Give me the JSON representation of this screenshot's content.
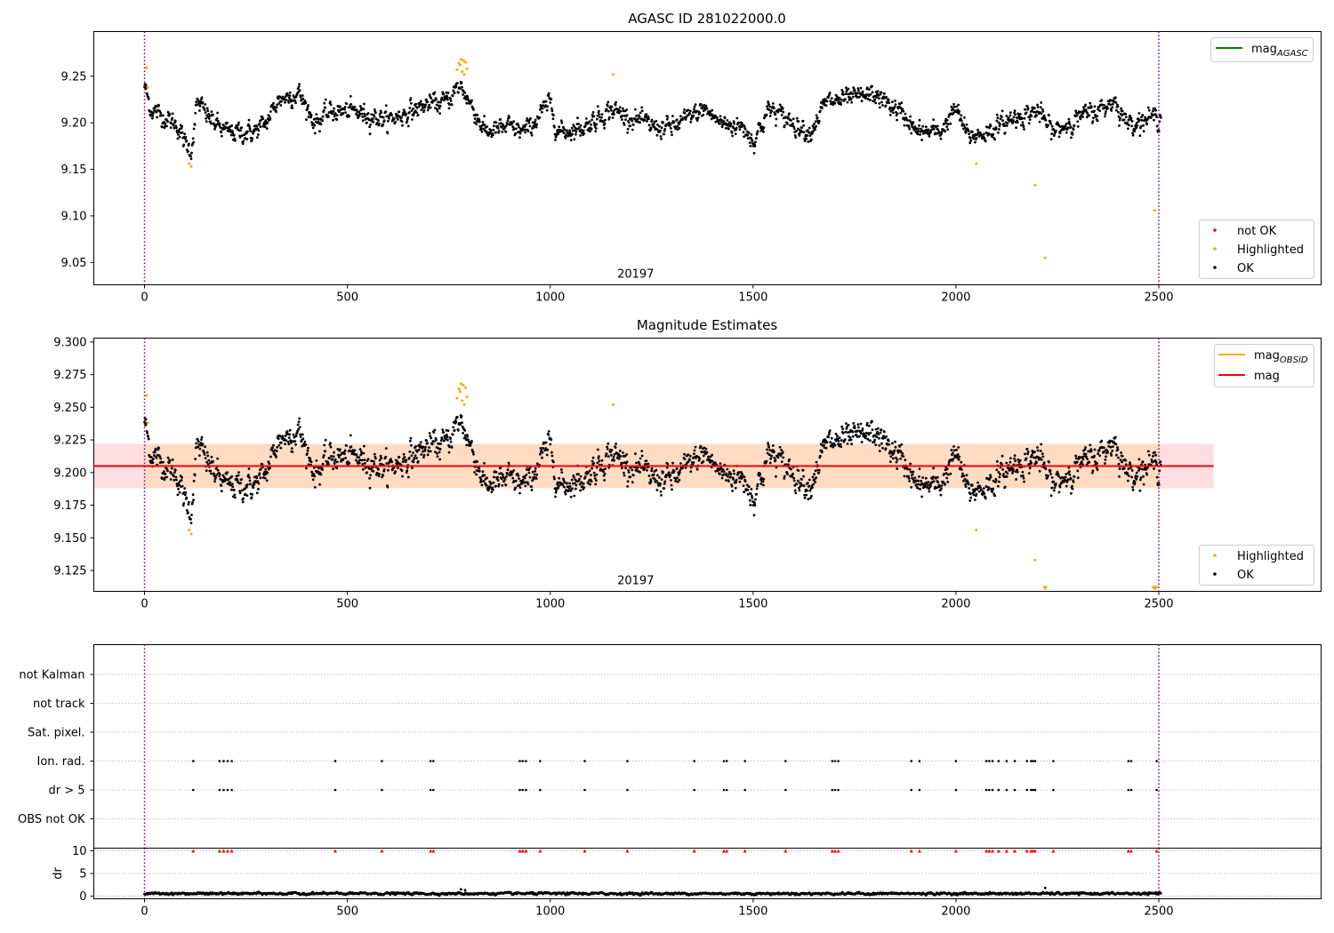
{
  "colors": {
    "ok": "#000000",
    "highlighted": "#ffa500",
    "not_ok": "#ff0000",
    "mag_agasc": "#008000",
    "mag_obsid": "#ffa500",
    "mag": "#ff0000",
    "band_outer": "#ffb6c1",
    "band_inner": "#ffdab9",
    "obs_boundary": "#800080",
    "grid": "#b0b0b0"
  },
  "chart_data": [
    {
      "id": "agasc",
      "type": "scatter",
      "title": "AGASC ID 281022000.0",
      "xlim": [
        -125,
        2900
      ],
      "ylim": [
        9.026,
        9.298
      ],
      "xticks": [
        0,
        500,
        1000,
        1500,
        2000,
        2500
      ],
      "yticks": [
        9.05,
        9.1,
        9.15,
        9.2,
        9.25
      ],
      "ytick_labels": [
        "9.05",
        "9.10",
        "9.15",
        "9.20",
        "9.25"
      ],
      "obs_boundaries": [
        0,
        2500
      ],
      "obsid_label": "20197",
      "obsid_label_x": 1250,
      "line_legend": [
        {
          "name": "mag",
          "subscript": "AGASC",
          "color_key": "mag_agasc"
        }
      ],
      "point_legend": [
        {
          "name": "not OK",
          "color_key": "not_ok"
        },
        {
          "name": "Highlighted",
          "color_key": "highlighted"
        },
        {
          "name": "OK",
          "color_key": "ok"
        }
      ],
      "highlighted_points": [
        [
          5,
          9.259
        ],
        [
          8,
          9.238
        ],
        [
          110,
          9.156
        ],
        [
          115,
          9.153
        ],
        [
          770,
          9.257
        ],
        [
          775,
          9.264
        ],
        [
          778,
          9.262
        ],
        [
          780,
          9.268
        ],
        [
          783,
          9.255
        ],
        [
          786,
          9.267
        ],
        [
          788,
          9.252
        ],
        [
          791,
          9.265
        ],
        [
          795,
          9.258
        ],
        [
          1155,
          9.252
        ],
        [
          2050,
          9.156
        ],
        [
          2195,
          9.133
        ],
        [
          2220,
          9.055
        ],
        [
          2490,
          9.106
        ]
      ],
      "ok_series": {
        "x_start": 0,
        "x_end": 2505,
        "n": 2200,
        "anchors": [
          [
            0,
            9.24
          ],
          [
            15,
            9.215
          ],
          [
            80,
            9.198
          ],
          [
            100,
            9.178
          ],
          [
            115,
            9.17
          ],
          [
            130,
            9.222
          ],
          [
            160,
            9.205
          ],
          [
            200,
            9.19
          ],
          [
            270,
            9.19
          ],
          [
            300,
            9.2
          ],
          [
            330,
            9.225
          ],
          [
            380,
            9.232
          ],
          [
            420,
            9.2
          ],
          [
            460,
            9.212
          ],
          [
            520,
            9.212
          ],
          [
            600,
            9.203
          ],
          [
            660,
            9.213
          ],
          [
            700,
            9.22
          ],
          [
            740,
            9.222
          ],
          [
            780,
            9.24
          ],
          [
            810,
            9.215
          ],
          [
            840,
            9.19
          ],
          [
            900,
            9.195
          ],
          [
            940,
            9.19
          ],
          [
            1000,
            9.222
          ],
          [
            1020,
            9.19
          ],
          [
            1080,
            9.195
          ],
          [
            1150,
            9.215
          ],
          [
            1200,
            9.205
          ],
          [
            1260,
            9.195
          ],
          [
            1300,
            9.195
          ],
          [
            1380,
            9.215
          ],
          [
            1420,
            9.2
          ],
          [
            1480,
            9.195
          ],
          [
            1500,
            9.18
          ],
          [
            1540,
            9.215
          ],
          [
            1600,
            9.2
          ],
          [
            1640,
            9.19
          ],
          [
            1680,
            9.222
          ],
          [
            1730,
            9.225
          ],
          [
            1800,
            9.23
          ],
          [
            1850,
            9.215
          ],
          [
            1880,
            9.205
          ],
          [
            1900,
            9.19
          ],
          [
            1960,
            9.19
          ],
          [
            2000,
            9.215
          ],
          [
            2030,
            9.185
          ],
          [
            2080,
            9.19
          ],
          [
            2140,
            9.205
          ],
          [
            2200,
            9.213
          ],
          [
            2240,
            9.19
          ],
          [
            2300,
            9.205
          ],
          [
            2360,
            9.215
          ],
          [
            2390,
            9.225
          ],
          [
            2420,
            9.2
          ],
          [
            2505,
            9.207
          ]
        ],
        "noise": 0.01
      }
    },
    {
      "id": "estimates",
      "type": "scatter",
      "title": "Magnitude Estimates",
      "xlim": [
        -125,
        2900
      ],
      "ylim": [
        9.109,
        9.303
      ],
      "xticks": [
        0,
        500,
        1000,
        1500,
        2000,
        2500
      ],
      "yticks": [
        9.125,
        9.15,
        9.175,
        9.2,
        9.225,
        9.25,
        9.275,
        9.3
      ],
      "ytick_labels": [
        "9.125",
        "9.150",
        "9.175",
        "9.200",
        "9.225",
        "9.250",
        "9.275",
        "9.300"
      ],
      "obs_boundaries": [
        0,
        2500
      ],
      "obsid_label": "20197",
      "obsid_label_x": 1250,
      "mag": 9.205,
      "mag_band": [
        9.188,
        9.222
      ],
      "mag_band_x": [
        -125,
        2635
      ],
      "mag_obsid": 9.205,
      "mag_obsid_band": [
        9.188,
        9.222
      ],
      "mag_obsid_x": [
        0,
        2505
      ],
      "line_legend": [
        {
          "name": "mag",
          "subscript": "OBSID",
          "color_key": "mag_obsid"
        },
        {
          "name": "mag",
          "subscript": "",
          "color_key": "mag"
        }
      ],
      "point_legend": [
        {
          "name": "Highlighted",
          "color_key": "highlighted"
        },
        {
          "name": "OK",
          "color_key": "ok"
        }
      ],
      "highlighted_points": [
        [
          5,
          9.259
        ],
        [
          8,
          9.238
        ],
        [
          110,
          9.156
        ],
        [
          115,
          9.153
        ],
        [
          770,
          9.257
        ],
        [
          775,
          9.264
        ],
        [
          778,
          9.262
        ],
        [
          780,
          9.268
        ],
        [
          783,
          9.255
        ],
        [
          786,
          9.267
        ],
        [
          788,
          9.252
        ],
        [
          791,
          9.265
        ],
        [
          795,
          9.258
        ],
        [
          1155,
          9.252
        ],
        [
          2050,
          9.156
        ],
        [
          2195,
          9.133
        ]
      ],
      "clipped_markers": [
        2220,
        2488,
        2492
      ]
    },
    {
      "id": "flags",
      "type": "scatter",
      "xlim": [
        -125,
        2900
      ],
      "categories": [
        "not Kalman",
        "not track",
        "Sat. pixel.",
        "Ion. rad.",
        "dr > 5",
        "OBS not OK"
      ],
      "obs_boundaries": [
        0,
        2500
      ],
      "flag_times": [
        120,
        185,
        195,
        205,
        215,
        470,
        585,
        705,
        712,
        925,
        932,
        940,
        975,
        1085,
        1190,
        1355,
        1428,
        1435,
        1480,
        1580,
        1695,
        1702,
        1710,
        1890,
        1910,
        2000,
        2075,
        2082,
        2090,
        2105,
        2125,
        2145,
        2175,
        2185,
        2190,
        2195,
        2240,
        2425,
        2432,
        2495
      ]
    },
    {
      "id": "dr",
      "type": "scatter",
      "ylabel": "dr",
      "xlim": [
        -125,
        2900
      ],
      "ylim": [
        -0.6,
        10.6
      ],
      "xticks": [
        0,
        500,
        1000,
        1500,
        2000,
        2500
      ],
      "yticks": [
        0,
        5,
        10
      ],
      "ytick_labels": [
        "0",
        "5",
        "10"
      ],
      "obs_boundaries": [
        0,
        2500
      ],
      "dr_series": {
        "x_start": 0,
        "x_end": 2505,
        "n": 2200,
        "base": 0.55,
        "noise": 0.25
      },
      "dr_spikes": [
        [
          780,
          1.5
        ],
        [
          790,
          1.3
        ],
        [
          2220,
          1.8
        ]
      ]
    }
  ]
}
